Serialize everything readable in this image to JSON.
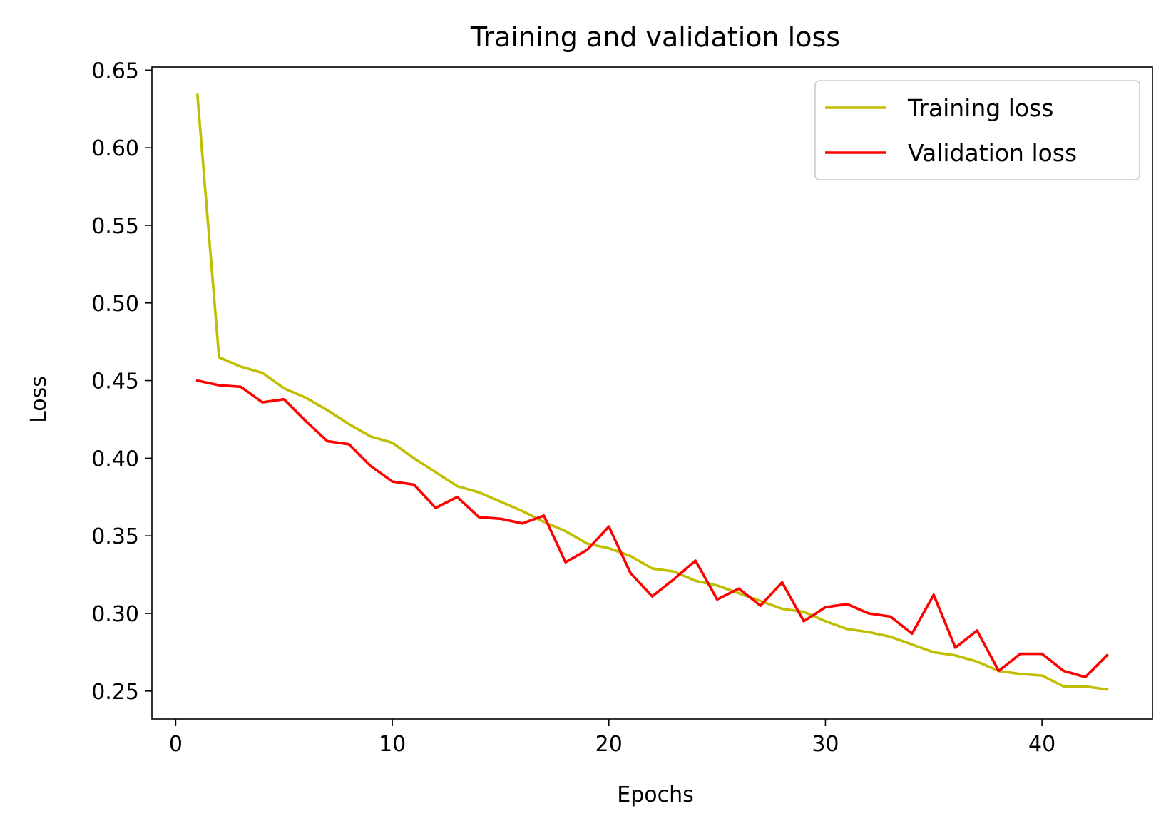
{
  "chart_data": {
    "type": "line",
    "title": "Training and validation loss",
    "xlabel": "Epochs",
    "ylabel": "Loss",
    "xlim": [
      -1.1,
      45.1
    ],
    "ylim": [
      0.232,
      0.652
    ],
    "xticks": [
      0,
      10,
      20,
      30,
      40
    ],
    "yticks": [
      0.25,
      0.3,
      0.35,
      0.4,
      0.45,
      0.5,
      0.55,
      0.6,
      0.65
    ],
    "ytick_labels": [
      "0.25",
      "0.30",
      "0.35",
      "0.40",
      "0.45",
      "0.50",
      "0.55",
      "0.60",
      "0.65"
    ],
    "legend_position": "top-right",
    "grid": false,
    "x": [
      1,
      2,
      3,
      4,
      5,
      6,
      7,
      8,
      9,
      10,
      11,
      12,
      13,
      14,
      15,
      16,
      17,
      18,
      19,
      20,
      21,
      22,
      23,
      24,
      25,
      26,
      27,
      28,
      29,
      30,
      31,
      32,
      33,
      34,
      35,
      36,
      37,
      38,
      39,
      40,
      41,
      42,
      43
    ],
    "series": [
      {
        "name": "Training loss",
        "color": "#bfbf00",
        "values": [
          0.634,
          0.465,
          0.459,
          0.455,
          0.445,
          0.439,
          0.431,
          0.422,
          0.414,
          0.41,
          0.4,
          0.391,
          0.382,
          0.378,
          0.372,
          0.366,
          0.359,
          0.353,
          0.345,
          0.342,
          0.337,
          0.329,
          0.327,
          0.321,
          0.318,
          0.313,
          0.308,
          0.303,
          0.301,
          0.295,
          0.29,
          0.288,
          0.285,
          0.28,
          0.275,
          0.273,
          0.269,
          0.263,
          0.261,
          0.26,
          0.253,
          0.253,
          0.251
        ]
      },
      {
        "name": "Validation loss",
        "color": "#ff0000",
        "values": [
          0.45,
          0.447,
          0.446,
          0.436,
          0.438,
          0.424,
          0.411,
          0.409,
          0.395,
          0.385,
          0.383,
          0.368,
          0.375,
          0.362,
          0.361,
          0.358,
          0.363,
          0.333,
          0.341,
          0.356,
          0.326,
          0.311,
          0.322,
          0.334,
          0.309,
          0.316,
          0.305,
          0.32,
          0.295,
          0.304,
          0.306,
          0.3,
          0.298,
          0.287,
          0.312,
          0.278,
          0.289,
          0.263,
          0.274,
          0.274,
          0.263,
          0.259,
          0.273
        ]
      }
    ]
  }
}
